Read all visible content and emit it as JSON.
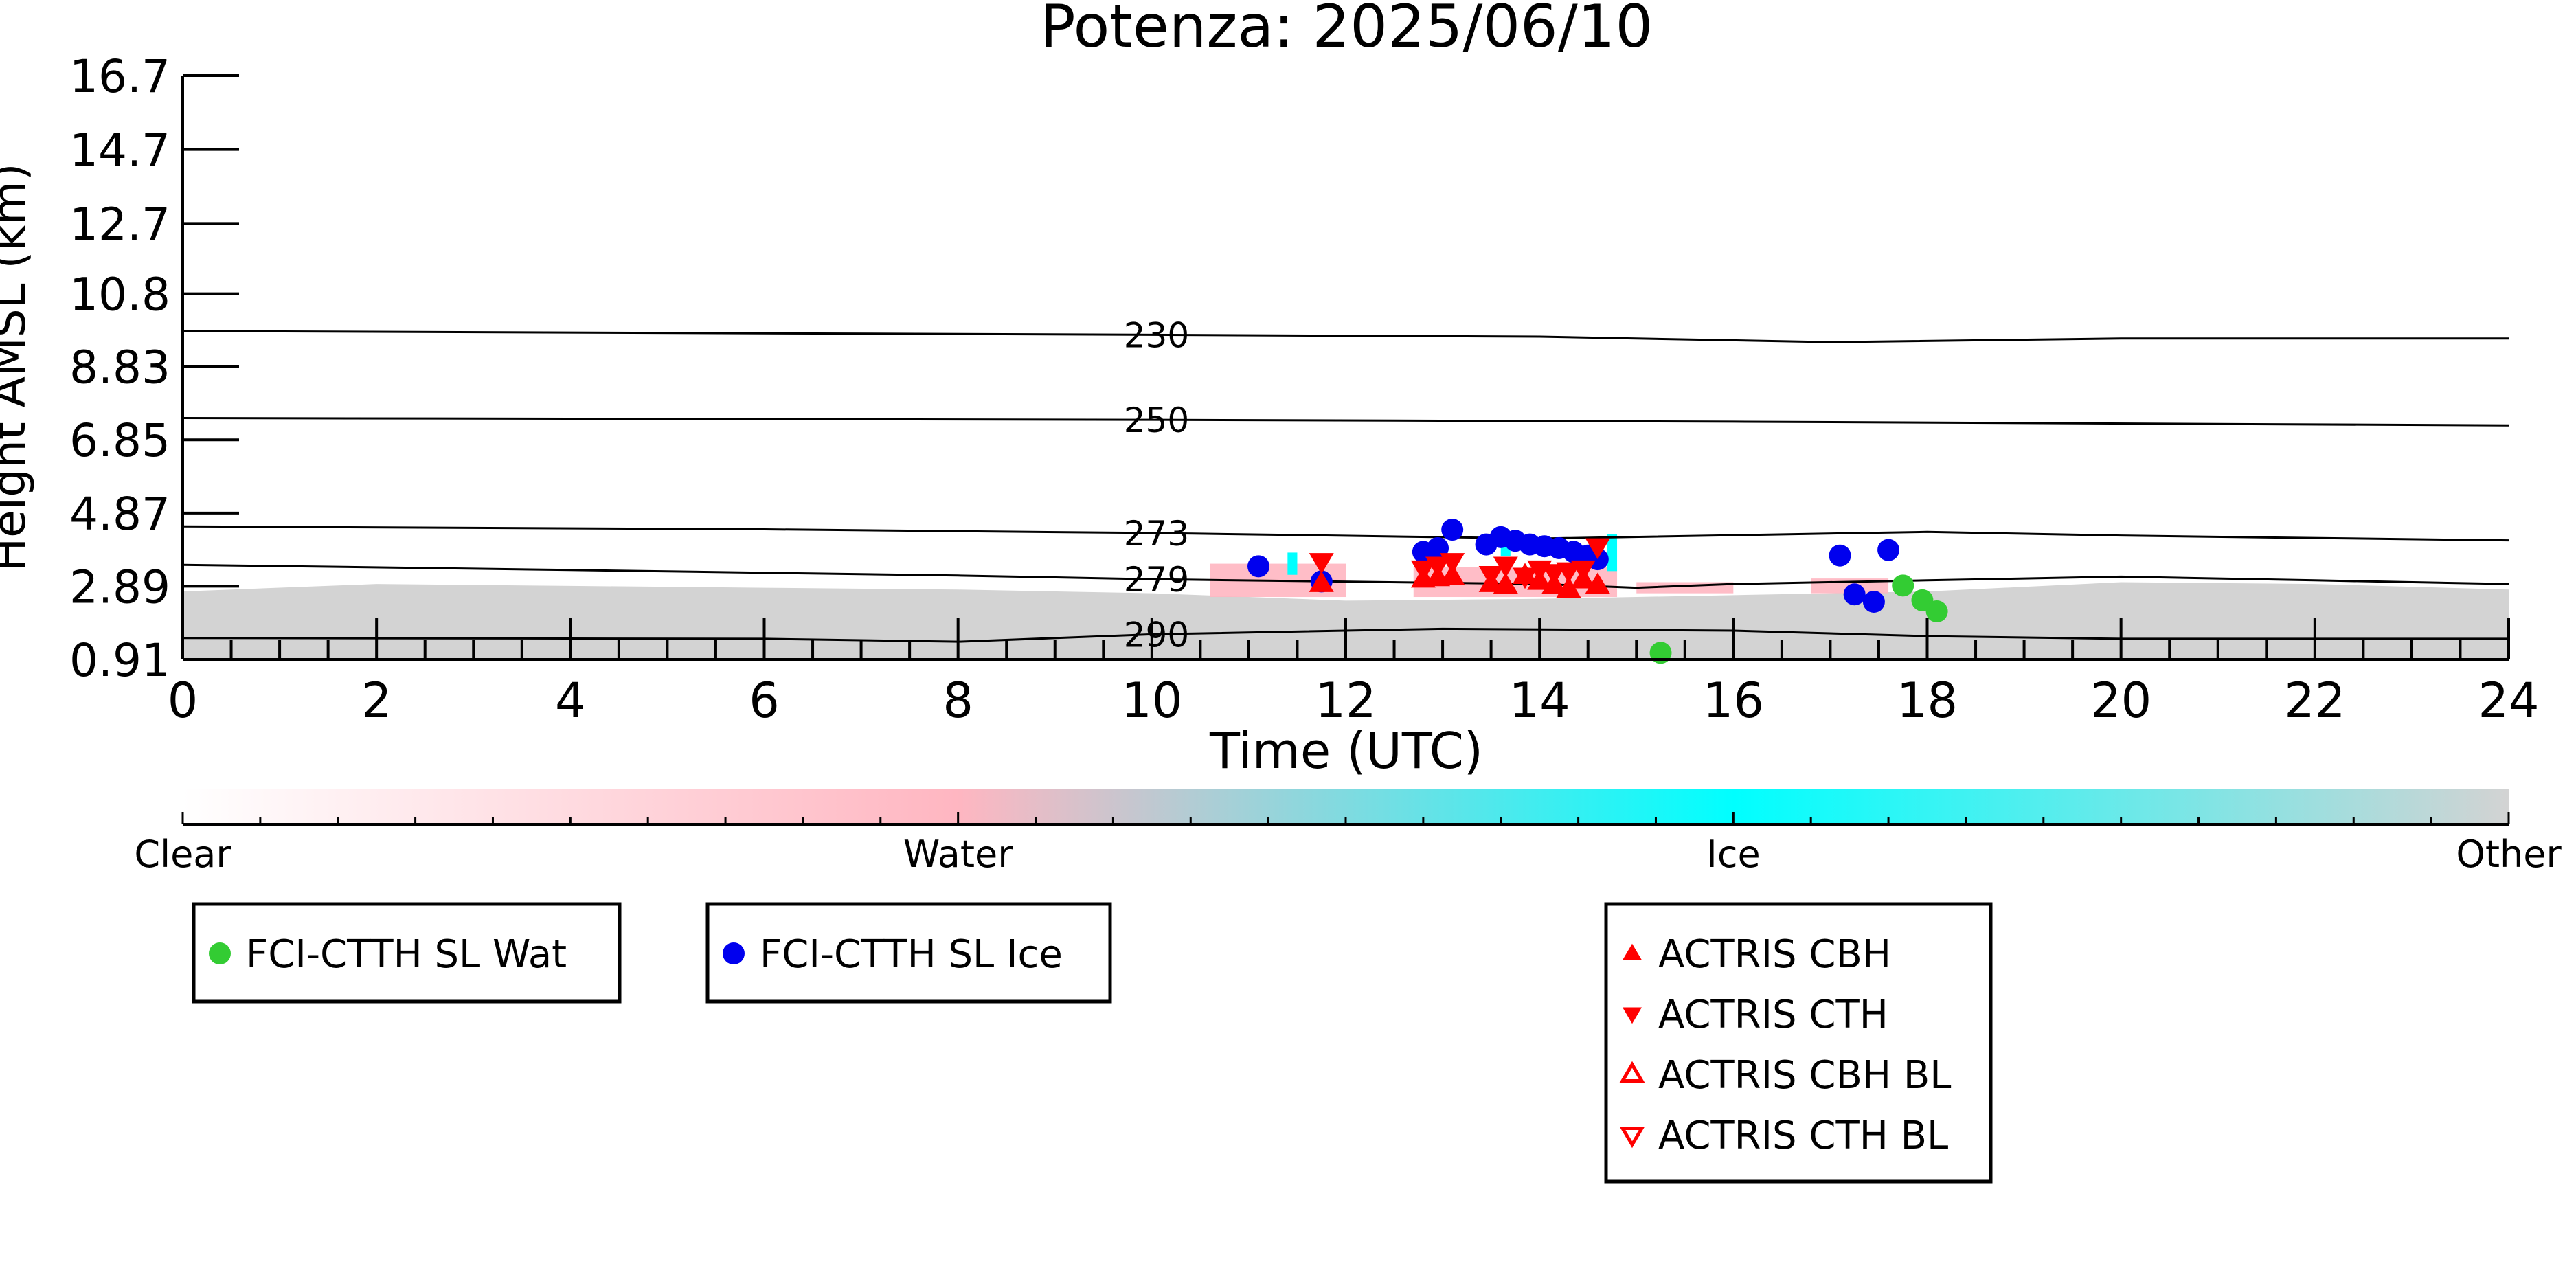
{
  "chart_data": {
    "type": "scatter",
    "title": "Potenza: 2025/06/10",
    "xlabel": "Time (UTC)",
    "ylabel": "Height AMSL (km)",
    "xlim": [
      0,
      24
    ],
    "ylim": [
      0.91,
      16.7
    ],
    "x_ticks": [
      "0",
      "2",
      "4",
      "6",
      "8",
      "10",
      "12",
      "14",
      "16",
      "18",
      "20",
      "22",
      "24"
    ],
    "y_ticks": [
      "0.91",
      "2.89",
      "4.87",
      "6.85",
      "8.83",
      "10.8",
      "12.7",
      "14.7",
      "16.7"
    ],
    "grid": false,
    "background_cloud_mask": {
      "description_colors": {
        "clear": "#ffffff",
        "water": "#ffb6c1",
        "ice": "#00ffff",
        "other": "#d3d3d3"
      },
      "other_top_km": [
        [
          0,
          2.75
        ],
        [
          2,
          2.95
        ],
        [
          4,
          2.9
        ],
        [
          6,
          2.85
        ],
        [
          8,
          2.8
        ],
        [
          10,
          2.7
        ],
        [
          12,
          2.5
        ],
        [
          14,
          2.55
        ],
        [
          16,
          2.65
        ],
        [
          18,
          2.75
        ],
        [
          20,
          3.0
        ],
        [
          22,
          2.95
        ],
        [
          24,
          2.8
        ]
      ],
      "water_cloud_segments": [
        [
          10.6,
          12.0,
          2.6,
          3.5
        ],
        [
          12.7,
          14.8,
          2.6,
          3.4
        ],
        [
          15.0,
          16.0,
          2.7,
          3.0
        ],
        [
          16.8,
          17.6,
          2.7,
          3.1
        ]
      ],
      "ice_cloud_segments": [
        [
          11.4,
          11.5,
          3.2,
          3.8
        ],
        [
          14.7,
          14.8,
          3.3,
          4.3
        ],
        [
          13.6,
          13.7,
          3.7,
          4.1
        ]
      ]
    },
    "contours": [
      {
        "label": "230",
        "points": [
          [
            0,
            9.79
          ],
          [
            10,
            9.69
          ],
          [
            14,
            9.64
          ],
          [
            17,
            9.49
          ],
          [
            20,
            9.59
          ],
          [
            24,
            9.59
          ]
        ]
      },
      {
        "label": "250",
        "points": [
          [
            0,
            7.44
          ],
          [
            10,
            7.39
          ],
          [
            16,
            7.34
          ],
          [
            24,
            7.24
          ]
        ]
      },
      {
        "label": "273",
        "points": [
          [
            0,
            4.51
          ],
          [
            6,
            4.43
          ],
          [
            10,
            4.33
          ],
          [
            14,
            4.18
          ],
          [
            18,
            4.36
          ],
          [
            20,
            4.26
          ],
          [
            24,
            4.13
          ]
        ]
      },
      {
        "label": "279",
        "points": [
          [
            0,
            3.47
          ],
          [
            4,
            3.33
          ],
          [
            8,
            3.18
          ],
          [
            10,
            3.08
          ],
          [
            14,
            2.95
          ],
          [
            15,
            2.85
          ],
          [
            16,
            2.95
          ],
          [
            18,
            3.05
          ],
          [
            20,
            3.15
          ],
          [
            22,
            3.05
          ],
          [
            24,
            2.95
          ]
        ]
      },
      {
        "label": "290",
        "points": [
          [
            0,
            1.49
          ],
          [
            6,
            1.47
          ],
          [
            8,
            1.39
          ],
          [
            10,
            1.59
          ],
          [
            13,
            1.74
          ],
          [
            16,
            1.69
          ],
          [
            18,
            1.54
          ],
          [
            20,
            1.47
          ],
          [
            24,
            1.47
          ]
        ]
      }
    ],
    "series": [
      {
        "name": "FCI-CTTH SL Wat",
        "color": "#33cc33",
        "marker": "circle",
        "x": [
          15.25,
          17.75,
          17.95,
          18.1
        ],
        "y": [
          1.09,
          2.91,
          2.51,
          2.21
        ]
      },
      {
        "name": "FCI-CTTH SL Ice",
        "color": "#0000ee",
        "marker": "circle",
        "x": [
          11.1,
          11.75,
          12.8,
          12.95,
          13.1,
          13.45,
          13.6,
          13.75,
          13.9,
          14.05,
          14.2,
          14.35,
          14.5,
          14.6,
          17.1,
          17.25,
          17.45,
          17.6
        ],
        "y": [
          3.43,
          3.02,
          3.82,
          3.92,
          4.42,
          4.02,
          4.22,
          4.12,
          4.02,
          3.97,
          3.92,
          3.82,
          3.72,
          3.62,
          3.72,
          2.67,
          2.47,
          3.87
        ]
      },
      {
        "name": "ACTRIS CBH",
        "color": "#ff0000",
        "marker": "triangle-up",
        "x": [
          11.75,
          12.8,
          12.95,
          13.1,
          13.5,
          13.65,
          13.85,
          14.0,
          14.15,
          14.3,
          14.45,
          14.6
        ],
        "y": [
          2.96,
          3.08,
          3.12,
          3.16,
          2.96,
          2.92,
          3.18,
          3.02,
          2.92,
          2.81,
          3.06,
          2.92
        ]
      },
      {
        "name": "ACTRIS CTH",
        "color": "#ff0000",
        "marker": "triangle-down",
        "x": [
          11.75,
          12.8,
          12.95,
          13.1,
          13.5,
          13.65,
          13.85,
          14.0,
          14.15,
          14.3,
          14.45,
          14.6
        ],
        "y": [
          3.56,
          3.36,
          3.46,
          3.56,
          3.21,
          3.46,
          3.16,
          3.36,
          3.26,
          3.31,
          3.36,
          3.96
        ]
      }
    ],
    "colorbar": {
      "labels": [
        "Clear",
        "Water",
        "Ice",
        "Other"
      ],
      "stops": [
        "#ffffff",
        "#ffb6c1",
        "#00ffff",
        "#d3d3d3"
      ]
    },
    "legends": [
      {
        "entries": [
          {
            "label": "FCI-CTTH SL Wat",
            "color": "#33cc33",
            "marker": "circle"
          }
        ]
      },
      {
        "entries": [
          {
            "label": "FCI-CTTH SL Ice",
            "color": "#0000ee",
            "marker": "circle"
          }
        ]
      },
      {
        "entries": [
          {
            "label": "ACTRIS CBH",
            "color": "#ff0000",
            "marker": "triangle-up"
          },
          {
            "label": "ACTRIS CTH",
            "color": "#ff0000",
            "marker": "triangle-down"
          },
          {
            "label": "ACTRIS CBH BL",
            "color": "#ff0000",
            "marker": "triangle-up-open"
          },
          {
            "label": "ACTRIS CTH BL",
            "color": "#ff0000",
            "marker": "triangle-down-open"
          }
        ]
      }
    ]
  }
}
